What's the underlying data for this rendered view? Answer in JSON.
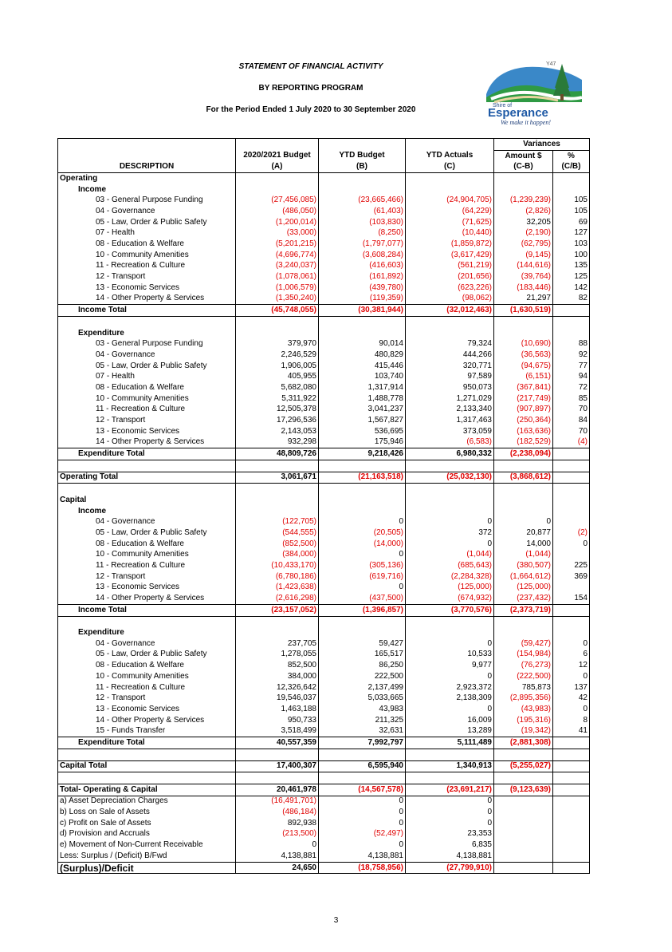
{
  "header": {
    "title": "STATEMENT OF FINANCIAL ACTIVITY",
    "subtitle": "BY REPORTING PROGRAM",
    "period": "For the Period Ended 1 July 2020 to 30 September 2020"
  },
  "logo": {
    "org_line1": "Shire of",
    "org_name": "Esperance",
    "tagline": "We make it happen!",
    "badge": "Y47"
  },
  "columns": {
    "variances": "Variances",
    "description": "DESCRIPTION",
    "budget": [
      "2020/2021 Budget",
      "(A)"
    ],
    "ytd_budget": [
      "YTD Budget",
      "(B)"
    ],
    "ytd_actuals": [
      "YTD Actuals",
      "(C)"
    ],
    "amount": [
      "Amount $",
      "(C-B)"
    ],
    "pct": [
      "%",
      "(C/B)"
    ]
  },
  "rows": [
    {
      "type": "section",
      "label": "Operating",
      "lvl": 0,
      "bt": true
    },
    {
      "type": "section",
      "label": "Income",
      "lvl": 1
    },
    {
      "type": "item",
      "label": "03 - General Purpose Funding",
      "a": "(27,456,085)",
      "b": "(23,665,466)",
      "c": "(24,904,705)",
      "d": "(1,239,239)",
      "e": "105"
    },
    {
      "type": "item",
      "label": "04 - Governance",
      "a": "(486,050)",
      "b": "(61,403)",
      "c": "(64,229)",
      "d": "(2,826)",
      "e": "105"
    },
    {
      "type": "item",
      "label": "05 - Law, Order & Public Safety",
      "a": "(1,200,014)",
      "b": "(103,830)",
      "c": "(71,625)",
      "d": "32,205",
      "e": "69"
    },
    {
      "type": "item",
      "label": "07 - Health",
      "a": "(33,000)",
      "b": "(8,250)",
      "c": "(10,440)",
      "d": "(2,190)",
      "e": "127"
    },
    {
      "type": "item",
      "label": "08 - Education & Welfare",
      "a": "(5,201,215)",
      "b": "(1,797,077)",
      "c": "(1,859,872)",
      "d": "(62,795)",
      "e": "103"
    },
    {
      "type": "item",
      "label": "10 - Community Amenities",
      "a": "(4,696,774)",
      "b": "(3,608,284)",
      "c": "(3,617,429)",
      "d": "(9,145)",
      "e": "100"
    },
    {
      "type": "item",
      "label": "11 - Recreation & Culture",
      "a": "(3,240,037)",
      "b": "(416,603)",
      "c": "(561,219)",
      "d": "(144,616)",
      "e": "135"
    },
    {
      "type": "item",
      "label": "12 - Transport",
      "a": "(1,078,061)",
      "b": "(161,892)",
      "c": "(201,656)",
      "d": "(39,764)",
      "e": "125"
    },
    {
      "type": "item",
      "label": "13 - Economic Services",
      "a": "(1,006,579)",
      "b": "(439,780)",
      "c": "(623,226)",
      "d": "(183,446)",
      "e": "142"
    },
    {
      "type": "item",
      "label": "14 - Other Property & Services",
      "a": "(1,350,240)",
      "b": "(119,359)",
      "c": "(98,062)",
      "d": "21,297",
      "e": "82"
    },
    {
      "type": "total1",
      "label": "Income Total",
      "a": "(45,748,055)",
      "b": "(30,381,944)",
      "c": "(32,012,463)",
      "d": "(1,630,519)",
      "e": "",
      "bt": true
    },
    {
      "type": "blank",
      "bt": true
    },
    {
      "type": "section",
      "label": "Expenditure",
      "lvl": 1
    },
    {
      "type": "item",
      "label": "03 - General Purpose Funding",
      "a": "379,970",
      "b": "90,014",
      "c": "79,324",
      "d": "(10,690)",
      "e": "88"
    },
    {
      "type": "item",
      "label": "04 - Governance",
      "a": "2,246,529",
      "b": "480,829",
      "c": "444,266",
      "d": "(36,563)",
      "e": "92"
    },
    {
      "type": "item",
      "label": "05 - Law, Order & Public Safety",
      "a": "1,906,005",
      "b": "415,446",
      "c": "320,771",
      "d": "(94,675)",
      "e": "77"
    },
    {
      "type": "item",
      "label": "07 - Health",
      "a": "405,955",
      "b": "103,740",
      "c": "97,589",
      "d": "(6,151)",
      "e": "94"
    },
    {
      "type": "item",
      "label": "08 - Education & Welfare",
      "a": "5,682,080",
      "b": "1,317,914",
      "c": "950,073",
      "d": "(367,841)",
      "e": "72"
    },
    {
      "type": "item",
      "label": "10 - Community Amenities",
      "a": "5,311,922",
      "b": "1,488,778",
      "c": "1,271,029",
      "d": "(217,749)",
      "e": "85"
    },
    {
      "type": "item",
      "label": "11 - Recreation & Culture",
      "a": "12,505,378",
      "b": "3,041,237",
      "c": "2,133,340",
      "d": "(907,897)",
      "e": "70"
    },
    {
      "type": "item",
      "label": "12 - Transport",
      "a": "17,296,536",
      "b": "1,567,827",
      "c": "1,317,463",
      "d": "(250,364)",
      "e": "84"
    },
    {
      "type": "item",
      "label": "13 - Economic Services",
      "a": "2,143,053",
      "b": "536,695",
      "c": "373,059",
      "d": "(163,636)",
      "e": "70"
    },
    {
      "type": "item",
      "label": "14 - Other Property & Services",
      "a": "932,298",
      "b": "175,946",
      "c": "(6,583)",
      "d": "(182,529)",
      "e": "(4)"
    },
    {
      "type": "total1",
      "label": "Expenditure Total",
      "a": "48,809,726",
      "b": "9,218,426",
      "c": "6,980,332",
      "d": "(2,238,094)",
      "e": "",
      "bt": true
    },
    {
      "type": "blank",
      "bt": true
    },
    {
      "type": "total0",
      "label": "Operating Total",
      "a": "3,061,671",
      "b": "(21,163,518)",
      "c": "(25,032,130)",
      "d": "(3,868,612)",
      "e": "",
      "bt": true
    },
    {
      "type": "blank",
      "bt": true
    },
    {
      "type": "section",
      "label": "Capital",
      "lvl": 0
    },
    {
      "type": "section",
      "label": "Income",
      "lvl": 1
    },
    {
      "type": "item",
      "label": "04 - Governance",
      "a": "(122,705)",
      "b": "0",
      "c": "0",
      "d": "0",
      "e": ""
    },
    {
      "type": "item",
      "label": "05 - Law, Order & Public Safety",
      "a": "(544,555)",
      "b": "(20,505)",
      "c": "372",
      "d": "20,877",
      "e": "(2)"
    },
    {
      "type": "item",
      "label": "08 - Education & Welfare",
      "a": "(852,500)",
      "b": "(14,000)",
      "c": "0",
      "d": "14,000",
      "e": "0"
    },
    {
      "type": "item",
      "label": "10 - Community Amenities",
      "a": "(384,000)",
      "b": "0",
      "c": "(1,044)",
      "d": "(1,044)",
      "e": ""
    },
    {
      "type": "item",
      "label": "11 - Recreation & Culture",
      "a": "(10,433,170)",
      "b": "(305,136)",
      "c": "(685,643)",
      "d": "(380,507)",
      "e": "225"
    },
    {
      "type": "item",
      "label": "12 - Transport",
      "a": "(6,780,186)",
      "b": "(619,716)",
      "c": "(2,284,328)",
      "d": "(1,664,612)",
      "e": "369"
    },
    {
      "type": "item",
      "label": "13 - Economic Services",
      "a": "(1,423,638)",
      "b": "0",
      "c": "(125,000)",
      "d": "(125,000)",
      "e": ""
    },
    {
      "type": "item",
      "label": "14 - Other Property & Services",
      "a": "(2,616,298)",
      "b": "(437,500)",
      "c": "(674,932)",
      "d": "(237,432)",
      "e": "154"
    },
    {
      "type": "total1",
      "label": "Income Total",
      "a": "(23,157,052)",
      "b": "(1,396,857)",
      "c": "(3,770,576)",
      "d": "(2,373,719)",
      "e": "",
      "bt": true
    },
    {
      "type": "blank",
      "bt": true
    },
    {
      "type": "section",
      "label": "Expenditure",
      "lvl": 1
    },
    {
      "type": "item",
      "label": "04 - Governance",
      "a": "237,705",
      "b": "59,427",
      "c": "0",
      "d": "(59,427)",
      "e": "0"
    },
    {
      "type": "item",
      "label": "05 - Law, Order & Public Safety",
      "a": "1,278,055",
      "b": "165,517",
      "c": "10,533",
      "d": "(154,984)",
      "e": "6"
    },
    {
      "type": "item",
      "label": "08 - Education & Welfare",
      "a": "852,500",
      "b": "86,250",
      "c": "9,977",
      "d": "(76,273)",
      "e": "12"
    },
    {
      "type": "item",
      "label": "10 - Community Amenities",
      "a": "384,000",
      "b": "222,500",
      "c": "0",
      "d": "(222,500)",
      "e": "0"
    },
    {
      "type": "item",
      "label": "11 - Recreation & Culture",
      "a": "12,326,642",
      "b": "2,137,499",
      "c": "2,923,372",
      "d": "785,873",
      "e": "137"
    },
    {
      "type": "item",
      "label": "12 - Transport",
      "a": "19,546,037",
      "b": "5,033,665",
      "c": "2,138,309",
      "d": "(2,895,356)",
      "e": "42"
    },
    {
      "type": "item",
      "label": "13 - Economic Services",
      "a": "1,463,188",
      "b": "43,983",
      "c": "0",
      "d": "(43,983)",
      "e": "0"
    },
    {
      "type": "item",
      "label": "14 - Other Property & Services",
      "a": "950,733",
      "b": "211,325",
      "c": "16,009",
      "d": "(195,316)",
      "e": "8"
    },
    {
      "type": "item",
      "label": "15 - Funds Transfer",
      "a": "3,518,499",
      "b": "32,631",
      "c": "13,289",
      "d": "(19,342)",
      "e": "41"
    },
    {
      "type": "total1",
      "label": "Expenditure Total",
      "a": "40,557,359",
      "b": "7,992,797",
      "c": "5,111,489",
      "d": "(2,881,308)",
      "e": "",
      "bt": true
    },
    {
      "type": "blank",
      "bt": true
    },
    {
      "type": "total0",
      "label": "Capital Total",
      "a": "17,400,307",
      "b": "6,595,940",
      "c": "1,340,913",
      "d": "(5,255,027)",
      "e": "",
      "bt": true
    },
    {
      "type": "blank",
      "bt": true
    },
    {
      "type": "total0",
      "label": "Total- Operating & Capital",
      "a": "20,461,978",
      "b": "(14,567,578)",
      "c": "(23,691,217)",
      "d": "(9,123,639)",
      "e": ""
    },
    {
      "type": "adj",
      "label": "a) Asset Depreciation Charges",
      "a": "(16,491,701)",
      "b": "0",
      "c": "0",
      "bt": true
    },
    {
      "type": "adj",
      "label": "b) Loss on Sale of Assets",
      "a": "(486,184)",
      "b": "0",
      "c": "0"
    },
    {
      "type": "adj",
      "label": "c) Profit on Sale of Assets",
      "a": "892,938",
      "b": "0",
      "c": "0"
    },
    {
      "type": "adj",
      "label": "d) Provision and Accruals",
      "a": "(213,500)",
      "b": "(52,497)",
      "c": "23,353"
    },
    {
      "type": "adj",
      "label": "e) Movement of Non-Current Receivable",
      "a": "0",
      "b": "0",
      "c": "6,835"
    },
    {
      "type": "adj",
      "label": "Less: Surplus / (Deficit) B/Fwd",
      "a": "4,138,881",
      "b": "4,138,881",
      "c": "4,138,881"
    },
    {
      "type": "final",
      "label": "(Surplus)/Deficit",
      "a": "24,650",
      "b": "(18,758,956)",
      "c": "(27,799,910)",
      "bt": true,
      "bb": true
    }
  ],
  "page_number": "3",
  "colors": {
    "negative": "#e00000",
    "text": "#000000"
  }
}
